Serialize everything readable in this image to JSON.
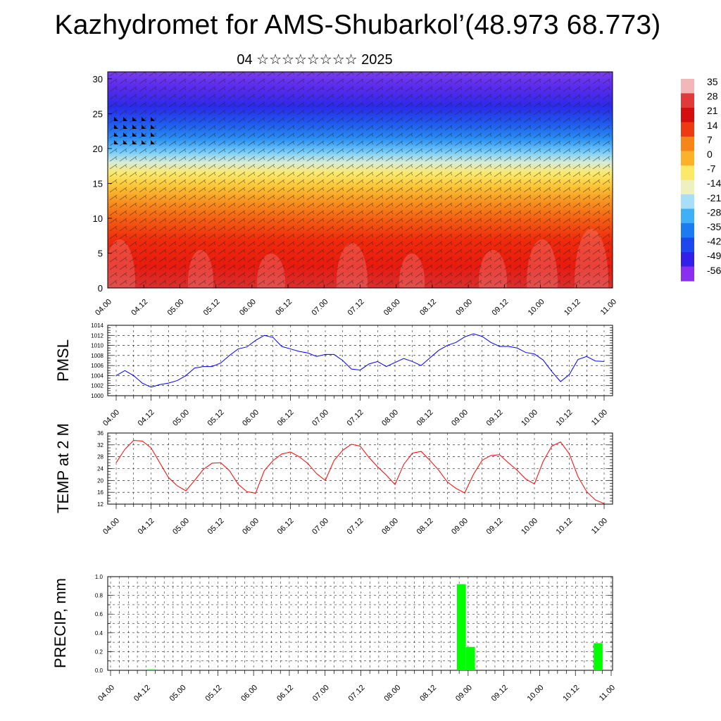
{
  "title": "Kazhydromet for AMS-Shubarkol’(48.973 68.773)",
  "subtitle": "04 ☆☆☆☆☆☆☆☆ 2025",
  "time_ticks": [
    "04.00",
    "04.12",
    "05.00",
    "05.12",
    "06.00",
    "06.12",
    "07.00",
    "07.12",
    "08.00",
    "08.12",
    "09.00",
    "09.12",
    "10.00",
    "10.12",
    "11.00"
  ],
  "colorbar": {
    "labels": [
      "35",
      "28",
      "21",
      "14",
      "7",
      "0",
      "-7",
      "-14",
      "-21",
      "-28",
      "-35",
      "-42",
      "-49",
      "-56"
    ],
    "colors": [
      "#f2b8b8",
      "#e03a3a",
      "#d40e0e",
      "#ee3a10",
      "#f7861a",
      "#fbb22a",
      "#fde968",
      "#eef0c0",
      "#a8def8",
      "#3fb0f6",
      "#1a7cf0",
      "#1c48ec",
      "#3320e8",
      "#8a2ff0"
    ]
  },
  "chart_data": [
    {
      "type": "heatmap",
      "title": "",
      "y_ticks": [
        "0",
        "5",
        "10",
        "15",
        "20",
        "25",
        "30"
      ],
      "ylim": [
        0,
        31
      ],
      "xlim": [
        "04.00",
        "11.00"
      ],
      "colorscale_range": [
        -56,
        35
      ],
      "description_of_field": "temperature decreasing with level, wind barbs overlaid"
    },
    {
      "type": "line",
      "ylabel": "PMSL",
      "ylim": [
        1000,
        1014
      ],
      "y_ticks": [
        "1014",
        "1012",
        "1010",
        "1008",
        "1006",
        "1004",
        "1002",
        "1000"
      ],
      "x_step_hours": 3,
      "x_start": "04.03",
      "color": "#0000ff",
      "values": [
        1004.0,
        1005.0,
        1004.0,
        1002.5,
        1001.7,
        1002.2,
        1002.5,
        1003.0,
        1004.0,
        1005.5,
        1005.8,
        1005.8,
        1006.5,
        1008.0,
        1009.3,
        1009.7,
        1011.0,
        1012.0,
        1011.6,
        1009.8,
        1009.3,
        1008.8,
        1008.5,
        1007.8,
        1008.2,
        1008.2,
        1007.0,
        1005.3,
        1005.1,
        1006.3,
        1006.8,
        1005.8,
        1006.6,
        1007.4,
        1006.8,
        1006.0,
        1007.5,
        1009.0,
        1010.0,
        1010.6,
        1011.7,
        1012.3,
        1011.8,
        1010.6,
        1009.8,
        1009.8,
        1009.5,
        1008.6,
        1008.3,
        1007.1,
        1004.8,
        1002.8,
        1004.2,
        1007.2,
        1007.8,
        1006.9,
        1006.8
      ]
    },
    {
      "type": "line",
      "ylabel": "TEMP at 2 M",
      "ylim": [
        12,
        36
      ],
      "y_ticks": [
        "36",
        "32",
        "28",
        "24",
        "20",
        "16",
        "12"
      ],
      "x_step_hours": 3,
      "x_start": "04.03",
      "color": "#ff0000",
      "values": [
        26.0,
        30.5,
        33.5,
        33.3,
        31.0,
        26.0,
        21.0,
        18.2,
        16.5,
        20.0,
        23.7,
        25.8,
        26.0,
        23.3,
        18.7,
        16.2,
        15.7,
        23.3,
        26.7,
        28.9,
        29.6,
        28.0,
        25.7,
        22.3,
        20.0,
        26.7,
        30.2,
        32.2,
        31.6,
        27.8,
        24.6,
        21.8,
        18.6,
        25.4,
        29.2,
        29.8,
        26.8,
        23.5,
        19.5,
        17.3,
        15.8,
        22.0,
        26.8,
        28.4,
        28.7,
        26.0,
        23.5,
        20.5,
        18.8,
        26.4,
        31.6,
        33.0,
        29.0,
        21.3,
        16.2,
        13.4,
        12.2
      ]
    },
    {
      "type": "bar",
      "ylabel": "PRECIP, mm",
      "ylim": [
        0,
        1.0
      ],
      "y_ticks": [
        "1.0",
        "0.8",
        "0.6",
        "0.4",
        "0.2",
        "0.0"
      ],
      "x_step_hours": 3,
      "x_start": "04.00",
      "color": "#00ff00",
      "values": [
        0,
        0,
        0,
        0,
        0.01,
        0,
        0,
        0,
        0,
        0,
        0,
        0,
        0,
        0,
        0,
        0,
        0,
        0,
        0,
        0,
        0,
        0,
        0,
        0,
        0,
        0,
        0,
        0,
        0,
        0,
        0,
        0,
        0,
        0,
        0,
        0,
        0,
        0,
        0.92,
        0.25,
        0,
        0,
        0,
        0,
        0,
        0,
        0,
        0,
        0,
        0,
        0,
        0,
        0,
        0.29,
        0,
        0,
        0
      ]
    }
  ]
}
